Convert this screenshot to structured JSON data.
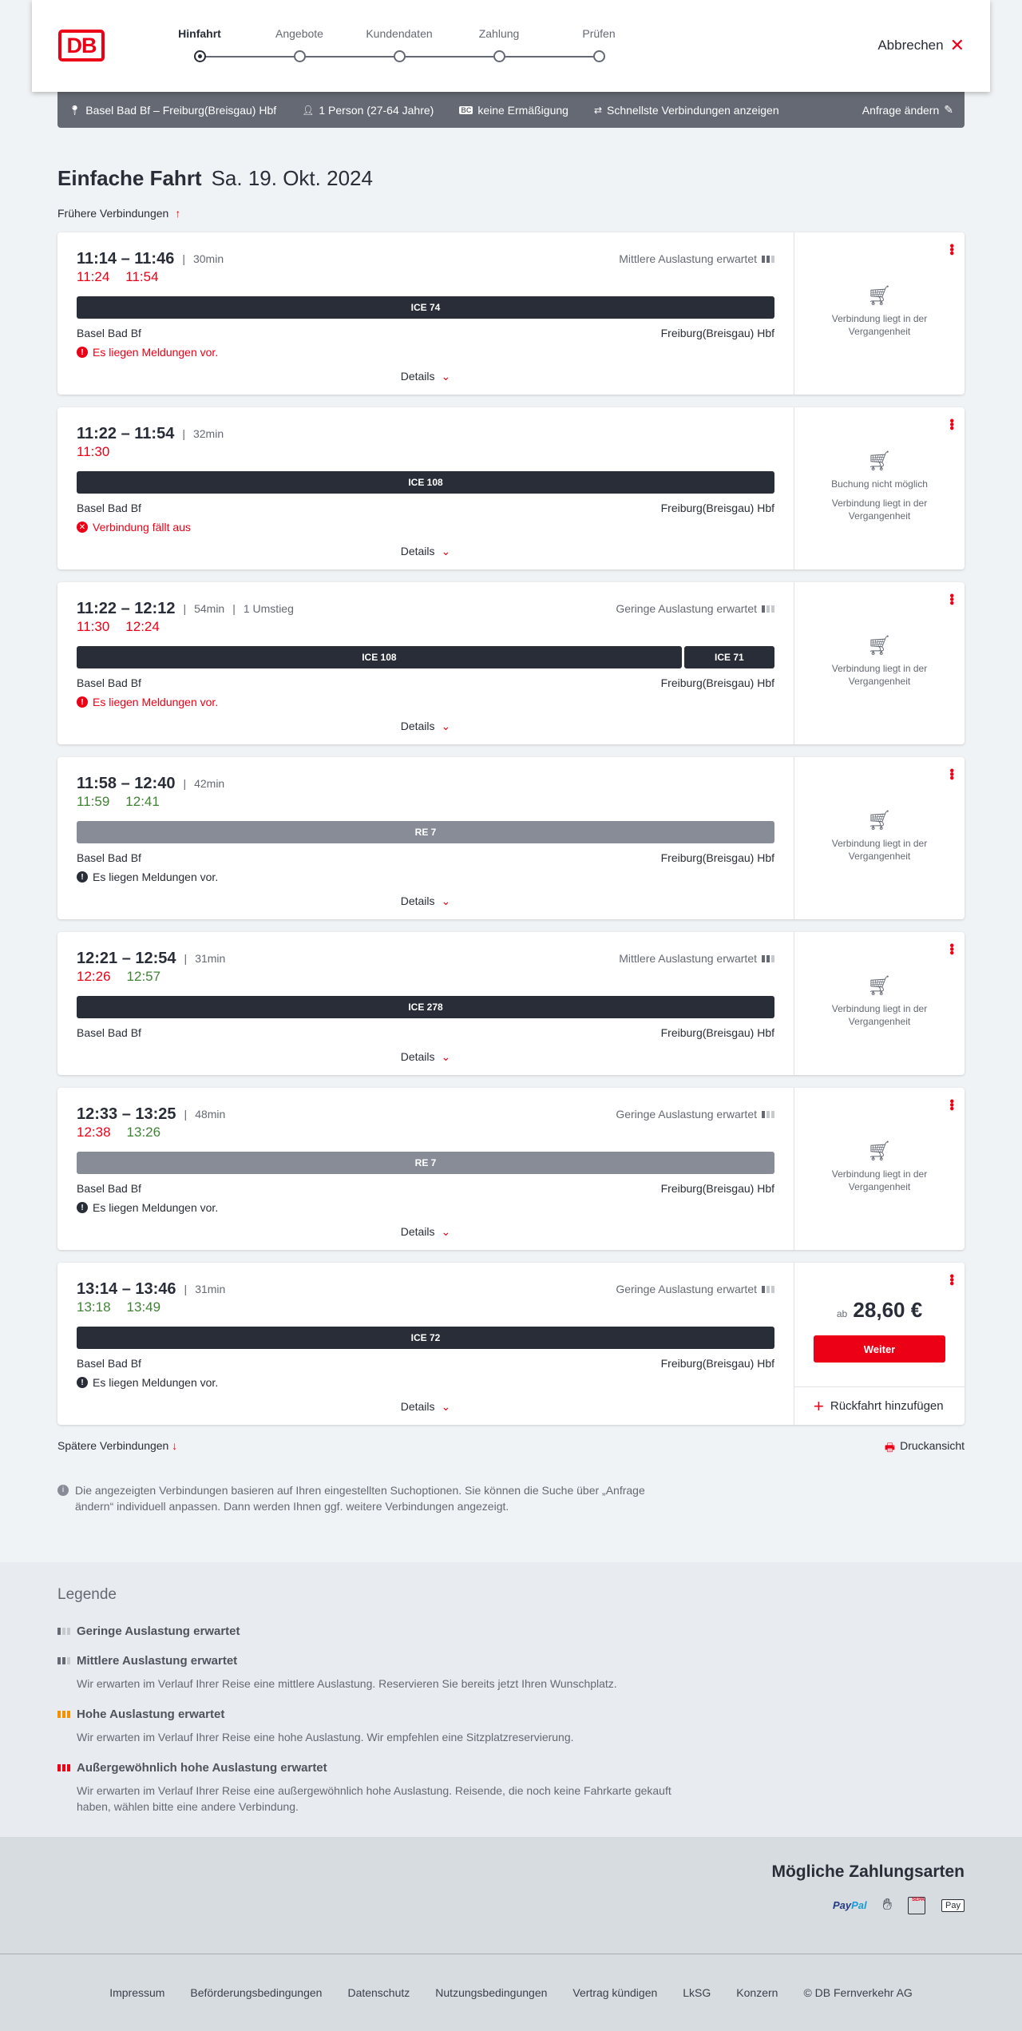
{
  "header": {
    "logo": "DB",
    "steps": [
      "Hinfahrt",
      "Angebote",
      "Kundendaten",
      "Zahlung",
      "Prüfen"
    ],
    "active_step": 0,
    "cancel": "Abbrechen"
  },
  "summary": {
    "route": "Basel Bad Bf – Freiburg(Breisgau) Hbf",
    "travellers": "1 Person (27-64 Jahre)",
    "discount_badge": "BC",
    "discount": "keine Ermäßigung",
    "fastest": "Schnellste Verbindungen anzeigen",
    "edit": "Anfrage ändern"
  },
  "page": {
    "title": "Einfache Fahrt",
    "date": "Sa. 19. Okt. 2024",
    "earlier": "Frühere Verbindungen",
    "later": "Spätere Verbindungen",
    "print": "Druckansicht",
    "info": "Die angezeigten Verbindungen basieren auf Ihren eingestellten Suchoptionen. Sie können die Suche über „Anfrage ändern“ individuell anpassen. Dann werden Ihnen ggf. weitere Verbindungen angezeigt.",
    "details": "Details"
  },
  "colors": {
    "accent": "#ec0016",
    "delay": "#ec0016",
    "on_time": "#408335",
    "ice_bar": "#282d37",
    "regional_bar": "#878c96"
  },
  "connections": [
    {
      "times": "11:14 – 11:46",
      "duration": "30min",
      "transfers": "",
      "load": "Mittlere Auslastung erwartet",
      "load_level": 2,
      "rt": [
        {
          "t": "11:24",
          "c": "red"
        },
        {
          "t": "11:54",
          "c": "red"
        }
      ],
      "trains": [
        {
          "name": "ICE 74",
          "type": "ice"
        }
      ],
      "from": "Basel Bad Bf",
      "to": "Freiburg(Breisgau) Hbf",
      "message": "Es liegen Meldungen vor.",
      "message_type": "warning-red",
      "status": [
        "Verbindung liegt in der Vergangenheit"
      ]
    },
    {
      "times": "11:22 – 11:54",
      "duration": "32min",
      "transfers": "",
      "load": "",
      "load_level": 0,
      "rt": [
        {
          "t": "11:30",
          "c": "red"
        }
      ],
      "trains": [
        {
          "name": "ICE 108",
          "type": "ice"
        }
      ],
      "from": "Basel Bad Bf",
      "to": "Freiburg(Breisgau) Hbf",
      "message": "Verbindung fällt aus",
      "message_type": "cancel-red",
      "status": [
        "Buchung nicht möglich",
        "Verbindung liegt in der Vergangenheit"
      ]
    },
    {
      "times": "11:22 – 12:12",
      "duration": "54min",
      "transfers": "1 Umstieg",
      "load": "Geringe Auslastung erwartet",
      "load_level": 1,
      "rt": [
        {
          "t": "11:30",
          "c": "red"
        },
        {
          "t": "12:24",
          "c": "red"
        }
      ],
      "trains": [
        {
          "name": "ICE 108",
          "type": "ice",
          "share": 0.87
        },
        {
          "name": "ICE 71",
          "type": "ice",
          "share": 0.13
        }
      ],
      "from": "Basel Bad Bf",
      "to": "Freiburg(Breisgau) Hbf",
      "message": "Es liegen Meldungen vor.",
      "message_type": "warning-red",
      "status": [
        "Verbindung liegt in der Vergangenheit"
      ]
    },
    {
      "times": "11:58 – 12:40",
      "duration": "42min",
      "transfers": "",
      "load": "",
      "load_level": 0,
      "rt": [
        {
          "t": "11:59",
          "c": "green"
        },
        {
          "t": "12:41",
          "c": "green"
        }
      ],
      "trains": [
        {
          "name": "RE 7",
          "type": "re"
        }
      ],
      "from": "Basel Bad Bf",
      "to": "Freiburg(Breisgau) Hbf",
      "message": "Es liegen Meldungen vor.",
      "message_type": "warning-black",
      "status": [
        "Verbindung liegt in der Vergangenheit"
      ]
    },
    {
      "times": "12:21 – 12:54",
      "duration": "31min",
      "transfers": "",
      "load": "Mittlere Auslastung erwartet",
      "load_level": 2,
      "rt": [
        {
          "t": "12:26",
          "c": "red"
        },
        {
          "t": "12:57",
          "c": "green"
        }
      ],
      "trains": [
        {
          "name": "ICE 278",
          "type": "ice"
        }
      ],
      "from": "Basel Bad Bf",
      "to": "Freiburg(Breisgau) Hbf",
      "message": "",
      "message_type": "",
      "status": [
        "Verbindung liegt in der Vergangenheit"
      ]
    },
    {
      "times": "12:33 – 13:25",
      "duration": "48min",
      "transfers": "",
      "load": "Geringe Auslastung erwartet",
      "load_level": 1,
      "rt": [
        {
          "t": "12:38",
          "c": "red"
        },
        {
          "t": "13:26",
          "c": "green"
        }
      ],
      "trains": [
        {
          "name": "RE 7",
          "type": "re"
        }
      ],
      "from": "Basel Bad Bf",
      "to": "Freiburg(Breisgau) Hbf",
      "message": "Es liegen Meldungen vor.",
      "message_type": "warning-black",
      "status": [
        "Verbindung liegt in der Vergangenheit"
      ]
    },
    {
      "times": "13:14 – 13:46",
      "duration": "31min",
      "transfers": "",
      "load": "Geringe Auslastung erwartet",
      "load_level": 1,
      "rt": [
        {
          "t": "13:18",
          "c": "green"
        },
        {
          "t": "13:49",
          "c": "green"
        }
      ],
      "trains": [
        {
          "name": "ICE 72",
          "type": "ice"
        }
      ],
      "from": "Basel Bad Bf",
      "to": "Freiburg(Breisgau) Hbf",
      "message": "Es liegen Meldungen vor.",
      "message_type": "warning-black",
      "status": [],
      "price_prefix": "ab",
      "price": "28,60 €",
      "book": "Weiter",
      "return": "Rückfahrt hinzufügen"
    }
  ],
  "legend": {
    "title": "Legende",
    "items": [
      {
        "title": "Geringe Auslastung erwartet",
        "text": "",
        "level": 1
      },
      {
        "title": "Mittlere Auslastung erwartet",
        "text": "Wir erwarten im Verlauf Ihrer Reise eine mittlere Auslastung. Reservieren Sie bereits jetzt Ihren Wunschplatz.",
        "level": 2
      },
      {
        "title": "Hohe Auslastung erwartet",
        "text": "Wir erwarten im Verlauf Ihrer Reise eine hohe Auslastung. Wir empfehlen eine Sitzplatzreservierung.",
        "level": 3
      },
      {
        "title": "Außergewöhnlich hohe Auslastung erwartet",
        "text": "Wir erwarten im Verlauf Ihrer Reise eine außergewöhnlich hohe Auslastung. Reisende, die noch keine Fahrkarte gekauft haben, wählen bitte eine andere Verbindung.",
        "level": 4
      }
    ]
  },
  "payment": {
    "title": "Mögliche Zahlungsarten",
    "methods": [
      "PayPal",
      "Kreditkarte",
      "SEPA",
      "Apple Pay"
    ]
  },
  "footer": {
    "links": [
      "Impressum",
      "Beförderungsbedingungen",
      "Datenschutz",
      "Nutzungsbedingungen",
      "Vertrag kündigen",
      "LkSG",
      "Konzern",
      "© DB Fernverkehr AG"
    ]
  }
}
